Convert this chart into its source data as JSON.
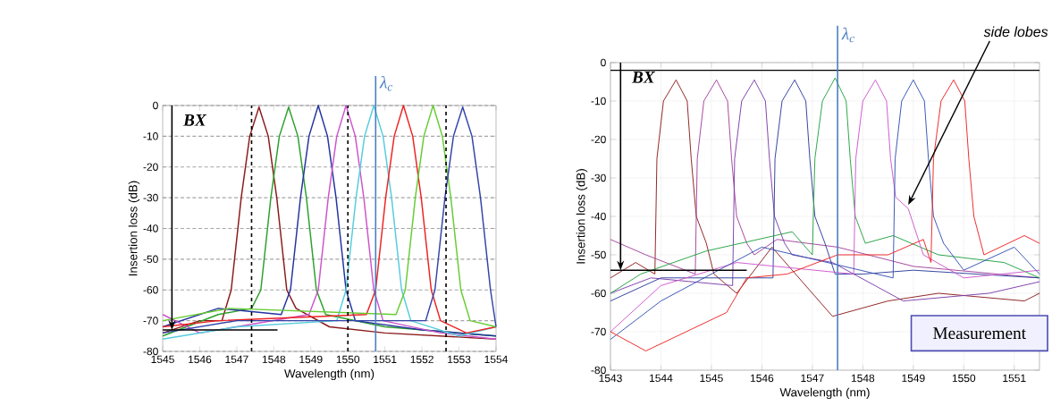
{
  "chart_data": [
    {
      "type": "line",
      "xlabel": "Wavelength (nm)",
      "ylabel": "Insertion loss (dB)",
      "xlim": [
        1545,
        1554
      ],
      "ylim": [
        -80,
        0
      ],
      "xticks": [
        1545,
        1546,
        1547,
        1548,
        1549,
        1550,
        1551,
        1552,
        1553,
        1554
      ],
      "yticks": [
        -80,
        -70,
        -60,
        -50,
        -40,
        -30,
        -20,
        -10,
        0
      ],
      "grid": "y",
      "series": [
        {
          "color": "#8b1a1a",
          "x": [
            1545,
            1546.0,
            1546.6,
            1546.85,
            1547.12,
            1547.35,
            1547.6,
            1547.85,
            1548.08,
            1548.35,
            1548.6,
            1549.5,
            1551,
            1554
          ],
          "values": [
            -74,
            -70,
            -70,
            -60,
            -30,
            -10,
            -0.5,
            -10,
            -30,
            -60,
            -66,
            -72,
            -74,
            -76
          ]
        },
        {
          "color": "#2ca02c",
          "x": [
            1545,
            1546.5,
            1547.4,
            1547.65,
            1547.92,
            1548.15,
            1548.4,
            1548.65,
            1548.88,
            1549.15,
            1549.4,
            1551,
            1554
          ],
          "values": [
            -75,
            -68,
            -66,
            -60,
            -30,
            -10,
            -0.5,
            -10,
            -30,
            -60,
            -68,
            -72,
            -75
          ]
        },
        {
          "color": "#2233a0",
          "x": [
            1545,
            1546.5,
            1548.2,
            1548.45,
            1548.72,
            1548.95,
            1549.2,
            1549.45,
            1549.68,
            1549.95,
            1550.2,
            1552,
            1554
          ],
          "values": [
            -72,
            -66,
            -68,
            -60,
            -30,
            -10,
            0,
            -10,
            -30,
            -60,
            -70,
            -73,
            -75
          ]
        },
        {
          "color": "#cc55cc",
          "x": [
            1545,
            1546,
            1548.95,
            1549.2,
            1549.47,
            1549.7,
            1549.95,
            1550.2,
            1550.43,
            1550.7,
            1550.95,
            1552.5,
            1554
          ],
          "values": [
            -68,
            -74,
            -68,
            -60,
            -30,
            -10,
            0,
            -10,
            -30,
            -60,
            -70,
            -74,
            -76
          ]
        },
        {
          "color": "#55ccdd",
          "x": [
            1545,
            1547,
            1549.7,
            1549.95,
            1550.22,
            1550.45,
            1550.7,
            1550.95,
            1551.18,
            1551.45,
            1551.7,
            1553,
            1554
          ],
          "values": [
            -76,
            -72,
            -70,
            -60,
            -30,
            -10,
            0,
            -10,
            -30,
            -60,
            -70,
            -75,
            -72
          ]
        },
        {
          "color": "#ee2222",
          "x": [
            1545,
            1546.5,
            1550.5,
            1550.75,
            1551.02,
            1551.25,
            1551.5,
            1551.75,
            1551.98,
            1552.25,
            1552.5,
            1553.2,
            1554
          ],
          "values": [
            -72,
            -70,
            -68,
            -60,
            -30,
            -10,
            0,
            -10,
            -30,
            -60,
            -70,
            -74,
            -72
          ]
        },
        {
          "color": "#66cc33",
          "x": [
            1545,
            1546.8,
            1551.3,
            1551.55,
            1551.82,
            1552.05,
            1552.3,
            1552.55,
            1552.78,
            1553.05,
            1553.3,
            1554
          ],
          "values": [
            -70,
            -66,
            -68,
            -60,
            -30,
            -10,
            0,
            -10,
            -30,
            -60,
            -70,
            -72
          ]
        },
        {
          "color": "#3344aa",
          "x": [
            1545,
            1547,
            1552.1,
            1552.35,
            1552.62,
            1552.85,
            1553.1,
            1553.35,
            1553.58,
            1553.85,
            1554
          ],
          "values": [
            -74,
            -70,
            -70,
            -60,
            -30,
            -10,
            -0.5,
            -10,
            -30,
            -60,
            -72
          ]
        },
        {
          "color": "#000000",
          "x": [
            1545,
            1548.1
          ],
          "values": [
            -73,
            -73
          ]
        }
      ],
      "ref_lines": [
        {
          "axis": "x",
          "value": 1547.4,
          "label": null,
          "color": "#000000",
          "line_style": "dashed"
        },
        {
          "axis": "x",
          "value": 1550.0,
          "label": null,
          "color": "#000000",
          "line_style": "dashed"
        },
        {
          "axis": "x",
          "value": 1552.65,
          "label": null,
          "color": "#000000",
          "line_style": "dashed"
        },
        {
          "axis": "x",
          "value": 1550.75,
          "label": "λ$_{c}$",
          "color": "#4a7fc0"
        }
      ],
      "annotations": [
        {
          "text": "BX",
          "x": 1545.25,
          "y": -73
        }
      ]
    },
    {
      "type": "line",
      "xlabel": "Wavelength (nm)",
      "ylabel": "Insertion loss (dB)",
      "xlim": [
        1543,
        1551.5
      ],
      "ylim": [
        -80,
        0
      ],
      "xticks": [
        1543,
        1544,
        1545,
        1546,
        1547,
        1548,
        1549,
        1550,
        1551
      ],
      "yticks": [
        -80,
        -70,
        -60,
        -50,
        -40,
        -30,
        -20,
        -10,
        0
      ],
      "grid": true,
      "series": [
        {
          "color": "#8b1a1a",
          "x": [
            1543,
            1543.5,
            1543.88,
            1543.92,
            1544.05,
            1544.3,
            1544.52,
            1544.6,
            1544.7,
            1544.9,
            1545.05,
            1545.5,
            1546.2,
            1547.4,
            1548.5,
            1549.5,
            1551.2,
            1551.5
          ],
          "values": [
            -56,
            -52,
            -55,
            -25,
            -10,
            -4.5,
            -10,
            -25,
            -40,
            -47,
            -55,
            -60,
            -48,
            -66,
            -62,
            -60,
            -62,
            -60
          ]
        },
        {
          "color": "#a0409a",
          "x": [
            1543,
            1543.7,
            1544.68,
            1544.72,
            1544.85,
            1545.1,
            1545.32,
            1545.4,
            1545.5,
            1545.7,
            1545.85,
            1546.3,
            1547.5,
            1549,
            1551.5
          ],
          "values": [
            -46,
            -50,
            -55,
            -25,
            -10,
            -4.5,
            -10,
            -25,
            -40,
            -47,
            -50,
            -46,
            -48,
            -53,
            -56
          ]
        },
        {
          "color": "#7a3aa8",
          "x": [
            1543,
            1543.8,
            1545.42,
            1545.46,
            1545.6,
            1545.85,
            1546.07,
            1546.15,
            1546.25,
            1546.45,
            1546.6,
            1547.4,
            1548.8,
            1550.5,
            1551.5
          ],
          "values": [
            -60,
            -56,
            -58,
            -25,
            -10,
            -4.5,
            -10,
            -25,
            -40,
            -47,
            -50,
            -52,
            -62,
            -60,
            -57
          ]
        },
        {
          "color": "#2a3a9a",
          "x": [
            1543,
            1544,
            1546.22,
            1546.26,
            1546.4,
            1546.65,
            1546.87,
            1546.95,
            1547.05,
            1547.25,
            1547.45,
            1548,
            1549,
            1551.5
          ],
          "values": [
            -62,
            -56,
            -56,
            -25,
            -10,
            -4.5,
            -10,
            -25,
            -40,
            -47,
            -55,
            -55,
            -54,
            -56
          ]
        },
        {
          "color": "#20a040",
          "x": [
            1543,
            1543.6,
            1544.9,
            1546.6,
            1547.0,
            1547.05,
            1547.2,
            1547.45,
            1547.67,
            1547.75,
            1547.85,
            1548.05,
            1548.6,
            1549.5,
            1550.8,
            1551.5
          ],
          "values": [
            -60,
            -55,
            -49,
            -44,
            -50,
            -25,
            -10,
            -4,
            -10,
            -25,
            -40,
            -47,
            -45,
            -50,
            -52,
            -56
          ]
        },
        {
          "color": "#cc55cc",
          "x": [
            1543,
            1544,
            1545.5,
            1547.82,
            1547.86,
            1548.0,
            1548.25,
            1548.47,
            1548.55,
            1548.65,
            1548.9,
            1549.2,
            1550,
            1551.5
          ],
          "values": [
            -70,
            -58,
            -52,
            -55,
            -25,
            -10,
            -4.5,
            -10,
            -25,
            -35,
            -38,
            -50,
            -56,
            -54
          ]
        },
        {
          "color": "#3050b0",
          "x": [
            1543,
            1544,
            1546,
            1548.6,
            1548.64,
            1548.77,
            1549.0,
            1549.22,
            1549.3,
            1549.4,
            1549.6,
            1550,
            1551,
            1551.5
          ],
          "values": [
            -72,
            -62,
            -48,
            -56,
            -25,
            -10,
            -4.5,
            -10,
            -25,
            -40,
            -47,
            -54,
            -48,
            -55
          ]
        },
        {
          "color": "#ee2020",
          "x": [
            1543,
            1543.7,
            1544.5,
            1545.3,
            1545.7,
            1546.5,
            1547.5,
            1548.5,
            1549.2,
            1549.35,
            1549.4,
            1549.55,
            1549.8,
            1550.02,
            1550.1,
            1550.2,
            1550.4,
            1551.2,
            1551.5
          ],
          "values": [
            -70,
            -75,
            -70,
            -65,
            -56,
            -55,
            -50,
            -50,
            -46,
            -52,
            -25,
            -10,
            -4.5,
            -10,
            -25,
            -40,
            -50,
            -45,
            -47
          ]
        },
        {
          "color": "#000000",
          "x": [
            1543,
            1545.7
          ],
          "values": [
            -54,
            -54
          ]
        }
      ],
      "ref_lines": [
        {
          "axis": "y",
          "value": -2,
          "label": null,
          "color": "#000000"
        },
        {
          "axis": "x",
          "value": 1547.5,
          "label": "λ$_{c}$",
          "color": "#4a7fc0"
        }
      ],
      "annotations": [
        {
          "text": "BX",
          "x": 1543.2,
          "y": -54
        },
        {
          "text": "side lobes",
          "x": 1548.9,
          "y": -37
        },
        "Measurement"
      ]
    }
  ]
}
